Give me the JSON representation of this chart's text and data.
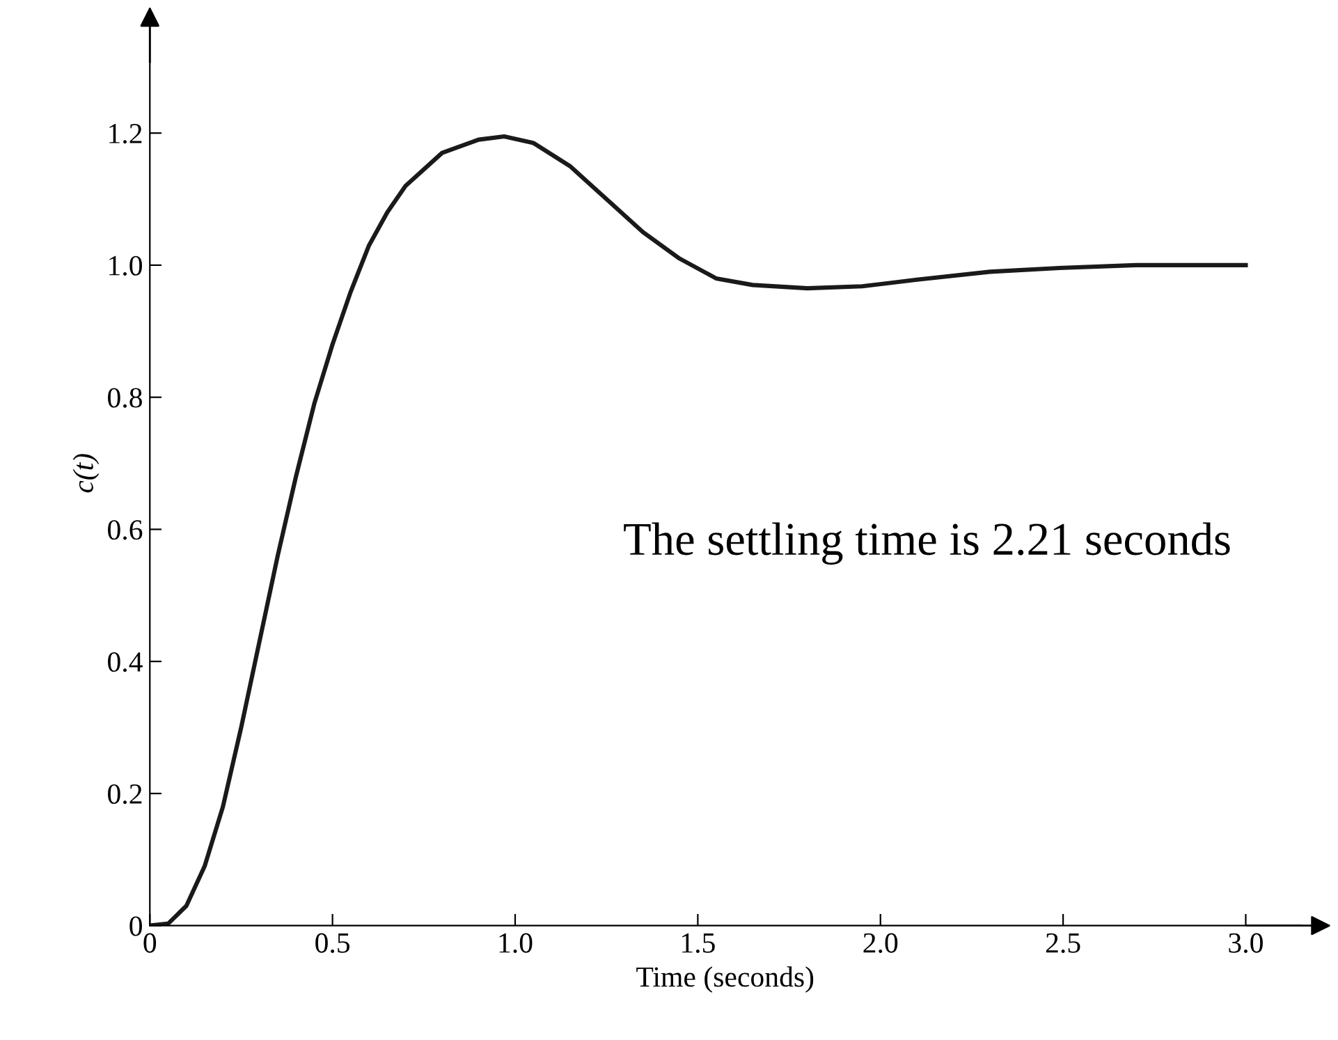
{
  "chart_data": {
    "type": "line",
    "xlabel": "Time (seconds)",
    "ylabel": "c(t)",
    "xlim": [
      0,
      3.15
    ],
    "ylim": [
      0,
      1.37
    ],
    "xticks": [
      0,
      0.5,
      {
        "value": 1,
        "label": "1.0"
      },
      1.5,
      {
        "value": 2,
        "label": "2.0"
      },
      2.5,
      {
        "value": 3,
        "label": "3.0"
      }
    ],
    "yticks": [
      0,
      0.2,
      0.4,
      0.6,
      0.8,
      {
        "value": 1,
        "label": "1.0"
      },
      1.2
    ],
    "grid": false,
    "marker": "none",
    "line_style": "solid",
    "annotations": [
      "The settling time is 2.21 seconds"
    ],
    "series": [
      {
        "color": "#1a1a1a",
        "x": [
          0,
          0.05,
          0.1,
          0.15,
          0.2,
          0.25,
          0.3,
          0.35,
          0.4,
          0.45,
          0.5,
          0.55,
          0.6,
          0.65,
          0.7,
          0.8,
          0.9,
          0.97,
          1.05,
          1.15,
          1.25,
          1.35,
          1.45,
          1.55,
          1.65,
          1.8,
          1.95,
          2.1,
          2.3,
          2.5,
          2.7,
          3.0
        ],
        "values": [
          0,
          0.003,
          0.03,
          0.09,
          0.18,
          0.3,
          0.43,
          0.56,
          0.68,
          0.79,
          0.88,
          0.96,
          1.03,
          1.08,
          1.12,
          1.17,
          1.19,
          1.195,
          1.185,
          1.15,
          1.1,
          1.05,
          1.01,
          0.98,
          0.97,
          0.965,
          0.968,
          0.978,
          0.99,
          0.996,
          1.0,
          1.0
        ]
      }
    ]
  }
}
